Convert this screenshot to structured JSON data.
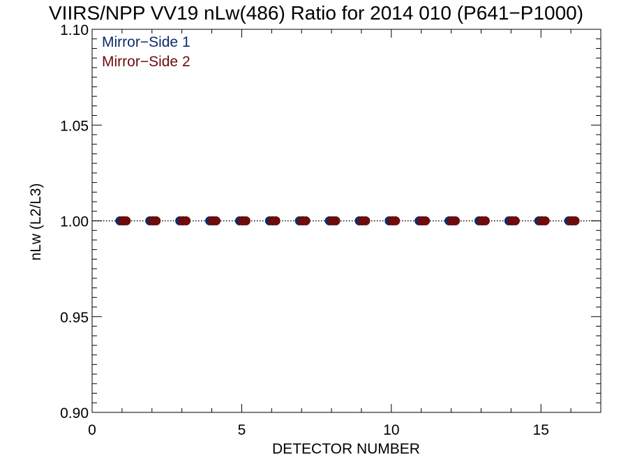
{
  "chart_data": {
    "type": "scatter",
    "title": "VIIRS/NPP VV19 nLw(486) Ratio for 2014 010 (P641−P1000)",
    "xlabel": "DETECTOR NUMBER",
    "ylabel": "nLw (L2/L3)",
    "xlim": [
      0,
      17
    ],
    "ylim": [
      0.9,
      1.1
    ],
    "x_ticks": [
      0,
      5,
      10,
      15
    ],
    "x_tick_labels": [
      "0",
      "5",
      "10",
      "15"
    ],
    "y_ticks": [
      0.9,
      0.95,
      1.0,
      1.05,
      1.1
    ],
    "y_tick_labels": [
      "0.90",
      "0.95",
      "1.00",
      "1.05",
      "1.10"
    ],
    "reference_line": {
      "y": 1.0,
      "style": "dotted"
    },
    "legend_position": "top-left",
    "series": [
      {
        "name": "Mirror−Side 1",
        "color": "#0b2d6b",
        "x": [
          1,
          2,
          3,
          4,
          5,
          6,
          7,
          8,
          9,
          10,
          11,
          12,
          13,
          14,
          15,
          16
        ],
        "y": [
          1.0,
          1.0,
          1.0,
          1.0,
          1.0,
          1.0,
          1.0,
          1.0,
          1.0,
          1.0,
          1.0,
          1.0,
          1.0,
          1.0,
          1.0,
          1.0
        ]
      },
      {
        "name": "Mirror−Side 2",
        "color": "#6e0b0b",
        "x": [
          1,
          2,
          3,
          4,
          5,
          6,
          7,
          8,
          9,
          10,
          11,
          12,
          13,
          14,
          15,
          16
        ],
        "y": [
          1.0,
          1.0,
          1.0,
          1.0,
          1.0,
          1.0,
          1.0,
          1.0,
          1.0,
          1.0,
          1.0,
          1.0,
          1.0,
          1.0,
          1.0,
          1.0
        ]
      }
    ]
  }
}
